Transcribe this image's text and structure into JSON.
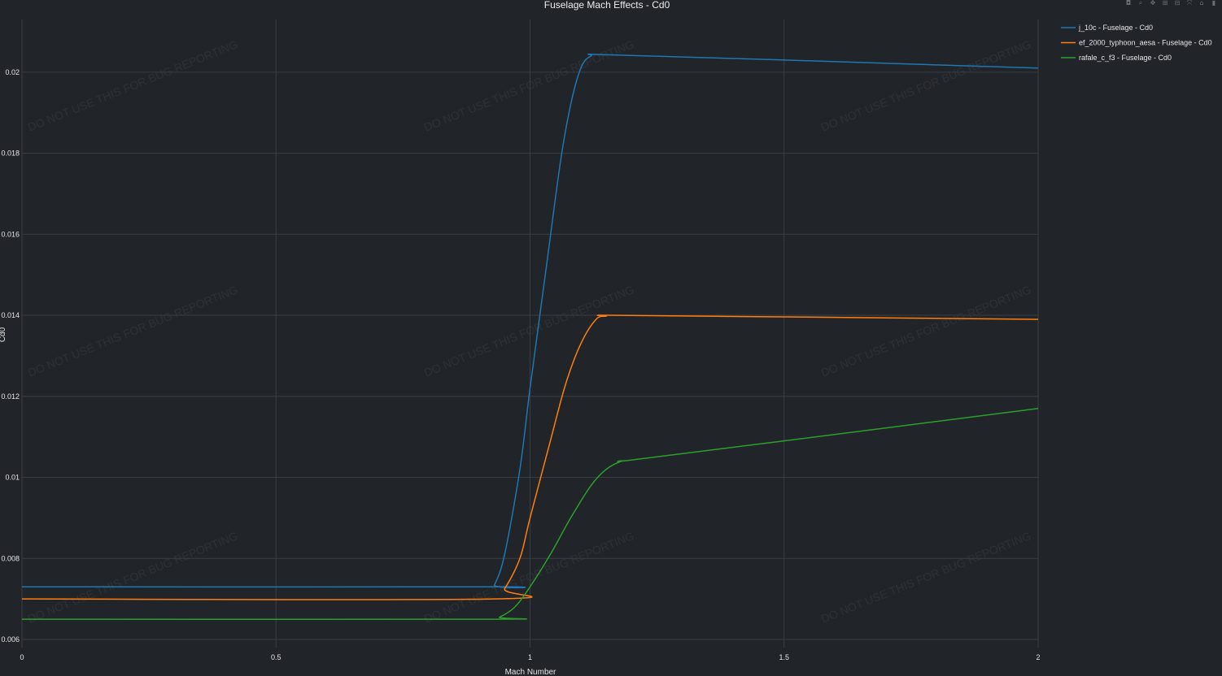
{
  "modebar": {
    "icons": [
      {
        "name": "camera-icon",
        "glyph": "◘"
      },
      {
        "name": "zoom-icon",
        "glyph": "⌕"
      },
      {
        "name": "pan-icon",
        "glyph": "✥"
      },
      {
        "name": "zoom-in-icon",
        "glyph": "⊞"
      },
      {
        "name": "zoom-out-icon",
        "glyph": "⊟"
      },
      {
        "name": "autoscale-icon",
        "glyph": "⤧"
      },
      {
        "name": "home-icon",
        "glyph": "⌂"
      },
      {
        "name": "plotly-logo-icon",
        "glyph": "▮"
      }
    ]
  },
  "watermark": {
    "text": "DO NOT USE THIS FOR BUG REPORTING"
  },
  "chart_data": {
    "type": "line",
    "title": "Fuselage Mach Effects - Cd0",
    "xlabel": "Mach Number",
    "ylabel": "Cd0",
    "xlim": [
      0,
      2
    ],
    "ylim": [
      0.0058,
      0.0213
    ],
    "xticks": [
      "0",
      "0.5",
      "1",
      "1.5",
      "2"
    ],
    "xtick_values": [
      0,
      0.5,
      1,
      1.5,
      2
    ],
    "yticks": [
      "0.006",
      "0.008",
      "0.01",
      "0.012",
      "0.014",
      "0.016",
      "0.018",
      "0.02"
    ],
    "ytick_values": [
      0.006,
      0.008,
      0.01,
      0.012,
      0.014,
      0.016,
      0.018,
      0.02
    ],
    "grid": true,
    "legend_position": "top-right",
    "series": [
      {
        "name": "j_10c - Fuselage - Cd0",
        "color": "#1f77b4",
        "x": [
          0,
          0.92,
          0.93,
          0.95,
          0.98,
          1.0,
          1.03,
          1.06,
          1.08,
          1.1,
          1.12,
          1.15,
          1.5,
          2.0
        ],
        "y": [
          0.0073,
          0.0073,
          0.00735,
          0.0081,
          0.0102,
          0.0122,
          0.015,
          0.0178,
          0.0192,
          0.0201,
          0.0204,
          0.02043,
          0.0203,
          0.0201
        ]
      },
      {
        "name": "ef_2000_typhoon_aesa - Fuselage - Cd0",
        "color": "#ff7f0e",
        "x": [
          0,
          0.93,
          0.95,
          0.98,
          1.0,
          1.04,
          1.07,
          1.1,
          1.13,
          1.15,
          1.16,
          1.5,
          2.0
        ],
        "y": [
          0.007,
          0.007,
          0.00725,
          0.008,
          0.009,
          0.0109,
          0.0123,
          0.0133,
          0.0139,
          0.01398,
          0.014,
          0.01396,
          0.0139
        ]
      },
      {
        "name": "rafale_c_f3 - Fuselage - Cd0",
        "color": "#2ca02c",
        "x": [
          0,
          0.92,
          0.94,
          0.97,
          1.0,
          1.04,
          1.08,
          1.12,
          1.15,
          1.18,
          1.2,
          1.5,
          2.0
        ],
        "y": [
          0.0065,
          0.0065,
          0.00655,
          0.0068,
          0.0073,
          0.0081,
          0.009,
          0.0098,
          0.0102,
          0.0104,
          0.01043,
          0.0109,
          0.0117
        ]
      }
    ]
  }
}
